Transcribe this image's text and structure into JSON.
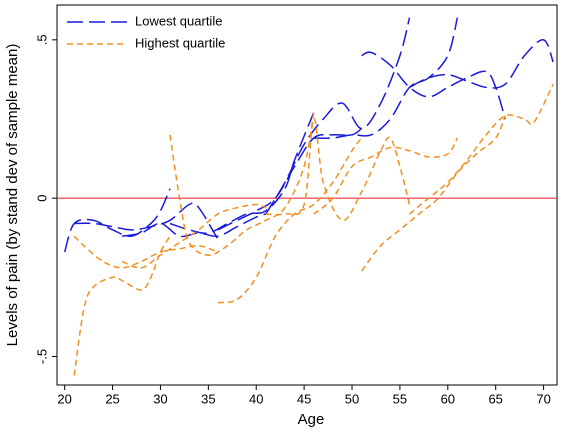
{
  "chart_data": {
    "type": "line",
    "x_label": "Age",
    "y_label": "Levels of pain (by stand dev of sample mean)",
    "xlim": [
      19.2,
      71.4
    ],
    "ylim": [
      -0.59,
      0.61
    ],
    "xticks": [
      20,
      25,
      30,
      35,
      40,
      45,
      50,
      55,
      60,
      65,
      70
    ],
    "yticks": [
      {
        "value": -0.5,
        "label": "-.5"
      },
      0,
      {
        "value": 0.5,
        "label": ".5"
      }
    ],
    "hline": 0,
    "hline_color": "#e8333b",
    "legend": "top-left",
    "series": [
      {
        "name": "Lowest quartile",
        "color": "#1a1adc",
        "dash": "16,6",
        "curves": [
          {
            "x": [
              20,
              21,
              23,
              25,
              27,
              29,
              30,
              31
            ],
            "values": [
              -0.17,
              -0.08,
              -0.07,
              -0.1,
              -0.12,
              -0.08,
              -0.04,
              0.03
            ]
          },
          {
            "x": [
              21,
              23,
              25,
              27,
              29,
              31,
              33,
              34,
              36
            ],
            "values": [
              -0.08,
              -0.08,
              -0.09,
              -0.1,
              -0.09,
              -0.07,
              -0.02,
              -0.03,
              -0.13
            ]
          },
          {
            "x": [
              26,
              28,
              30,
              32,
              34,
              36,
              38,
              40,
              41
            ],
            "values": [
              -0.12,
              -0.11,
              -0.08,
              -0.12,
              -0.11,
              -0.12,
              -0.09,
              -0.06,
              -0.05
            ]
          },
          {
            "x": [
              31,
              33,
              35,
              37,
              39,
              41,
              43,
              44,
              46
            ],
            "values": [
              -0.08,
              -0.1,
              -0.11,
              -0.08,
              -0.05,
              -0.04,
              0.03,
              0.12,
              0.27
            ]
          },
          {
            "x": [
              36,
              38,
              40,
              42,
              44,
              46,
              48,
              50,
              51
            ],
            "values": [
              -0.1,
              -0.07,
              -0.04,
              0.0,
              0.1,
              0.19,
              0.2,
              0.2,
              0.22
            ]
          },
          {
            "x": [
              41,
              43,
              45,
              47,
              49,
              51,
              53,
              55,
              56
            ],
            "values": [
              -0.05,
              0.05,
              0.17,
              0.25,
              0.3,
              0.22,
              0.3,
              0.45,
              0.57
            ]
          },
          {
            "x": [
              46,
              48,
              50,
              52,
              54,
              56,
              58,
              60,
              61
            ],
            "values": [
              0.19,
              0.19,
              0.2,
              0.2,
              0.25,
              0.35,
              0.38,
              0.45,
              0.57
            ]
          },
          {
            "x": [
              51,
              52,
              54,
              56,
              58,
              60,
              62,
              64,
              65,
              66
            ],
            "values": [
              0.45,
              0.46,
              0.42,
              0.35,
              0.32,
              0.35,
              0.38,
              0.4,
              0.35,
              0.25
            ]
          },
          {
            "x": [
              56,
              58,
              60,
              62,
              64,
              66,
              68,
              70,
              71
            ],
            "values": [
              0.35,
              0.38,
              0.39,
              0.37,
              0.35,
              0.36,
              0.45,
              0.5,
              0.43
            ]
          }
        ]
      },
      {
        "name": "Highest quartile",
        "color": "#f0901e",
        "dash": "6,4",
        "curves": [
          {
            "x": [
              21,
              22,
              23,
              25,
              26,
              28,
              29,
              30,
              31
            ],
            "values": [
              -0.56,
              -0.35,
              -0.28,
              -0.25,
              -0.26,
              -0.29,
              -0.25,
              -0.17,
              -0.12
            ]
          },
          {
            "x": [
              21,
              22,
              24,
              26,
              28,
              30,
              32,
              34,
              36
            ],
            "values": [
              -0.12,
              -0.15,
              -0.2,
              -0.22,
              -0.2,
              -0.17,
              -0.16,
              -0.15,
              -0.17
            ]
          },
          {
            "x": [
              26,
              28,
              30,
              32,
              34,
              36,
              38,
              40,
              41
            ],
            "values": [
              -0.2,
              -0.22,
              -0.18,
              -0.14,
              -0.1,
              -0.05,
              -0.03,
              -0.02,
              -0.03
            ]
          },
          {
            "x": [
              31,
              32,
              33,
              35,
              37,
              39,
              41,
              43,
              45,
              46
            ],
            "values": [
              0.2,
              0.0,
              -0.14,
              -0.18,
              -0.15,
              -0.1,
              -0.07,
              -0.03,
              0.1,
              0.27
            ]
          },
          {
            "x": [
              36,
              38,
              40,
              42,
              44,
              46,
              48,
              50,
              51
            ],
            "values": [
              -0.33,
              -0.32,
              -0.25,
              -0.12,
              -0.05,
              -0.02,
              0.05,
              0.15,
              0.19
            ]
          },
          {
            "x": [
              41,
              43,
              45,
              46,
              47,
              49,
              51,
              53,
              54,
              55,
              56
            ],
            "values": [
              -0.05,
              -0.05,
              -0.02,
              0.25,
              0.05,
              -0.07,
              0.02,
              0.15,
              0.19,
              0.1,
              -0.02
            ]
          },
          {
            "x": [
              46,
              48,
              50,
              52,
              54,
              56,
              58,
              60,
              61
            ],
            "values": [
              -0.05,
              0.0,
              0.1,
              0.13,
              0.16,
              0.15,
              0.13,
              0.14,
              0.19
            ]
          },
          {
            "x": [
              51,
              53,
              55,
              57,
              59,
              61,
              63,
              65,
              66
            ],
            "values": [
              -0.23,
              -0.15,
              -0.1,
              -0.05,
              0.0,
              0.08,
              0.14,
              0.19,
              0.26
            ]
          },
          {
            "x": [
              56,
              58,
              60,
              62,
              64,
              66,
              68,
              69,
              71
            ],
            "values": [
              -0.05,
              0.0,
              0.05,
              0.12,
              0.2,
              0.26,
              0.25,
              0.24,
              0.36
            ]
          }
        ]
      }
    ]
  }
}
